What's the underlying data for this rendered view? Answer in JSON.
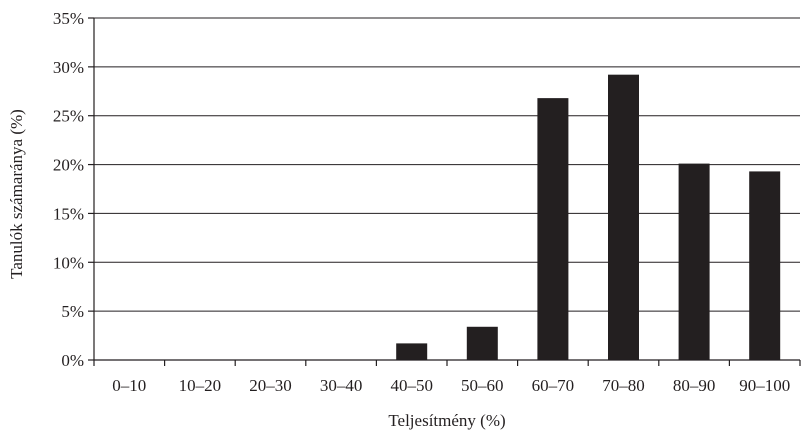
{
  "chart_data": {
    "type": "bar",
    "title": "",
    "xlabel": "Teljesítmény (%)",
    "ylabel": "Tanulók számaránya (%)",
    "categories": [
      "0–10",
      "10–20",
      "20–30",
      "30–40",
      "40–50",
      "50–60",
      "60–70",
      "70–80",
      "80–90",
      "90–100"
    ],
    "values": [
      0,
      0,
      0,
      0,
      1.7,
      3.4,
      26.8,
      29.2,
      20.1,
      19.3
    ],
    "unit": "%",
    "ylim": [
      0,
      35
    ],
    "yticks": [
      0,
      5,
      10,
      15,
      20,
      25,
      30,
      35
    ],
    "ytick_labels": [
      "0%",
      "5%",
      "10%",
      "15%",
      "20%",
      "25%",
      "30%",
      "35%"
    ],
    "grid": true,
    "bar_color": "#231f20"
  }
}
